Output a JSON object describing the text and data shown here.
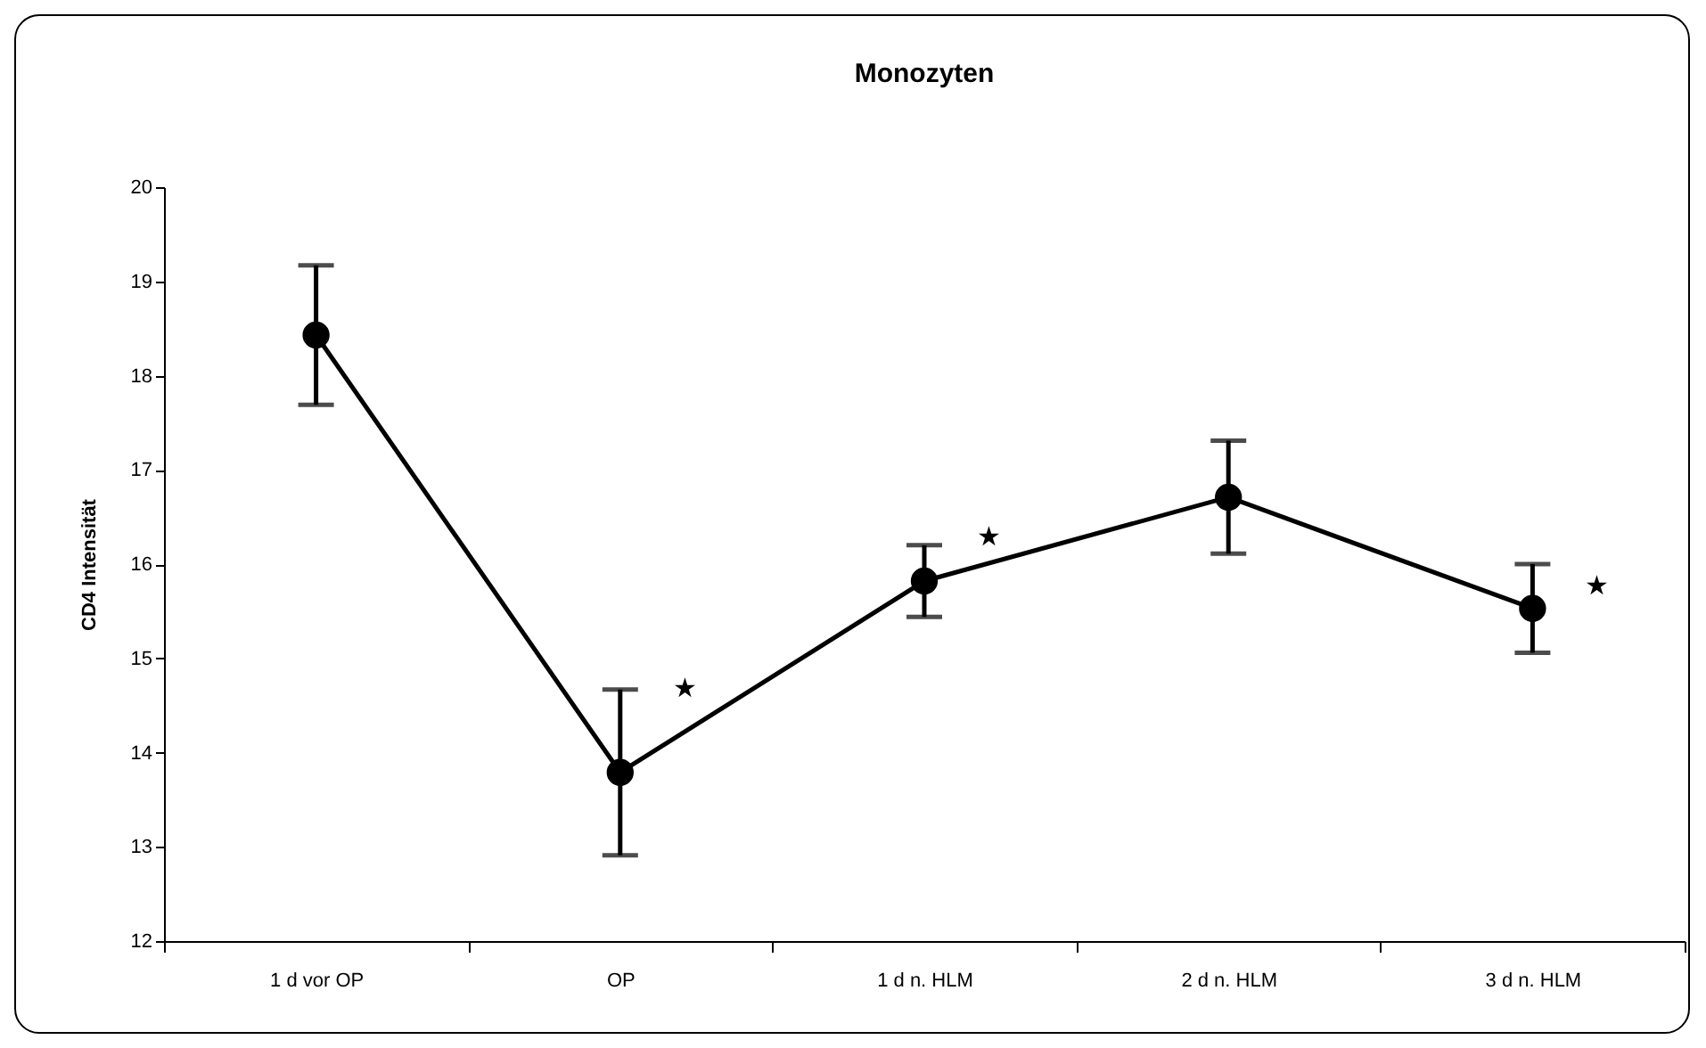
{
  "chart_data": {
    "type": "line",
    "title": "Monozyten",
    "ylabel": "CD4 Intensität",
    "categories": [
      "1 d vor OP",
      "OP",
      "1 d n. HLM",
      "2 d n. HLM",
      "3 d n. HLM"
    ],
    "series": [
      {
        "color": "#000000",
        "values": [
          18.43,
          13.79,
          15.82,
          16.71,
          15.53
        ],
        "errors": [
          0.74,
          0.88,
          0.38,
          0.6,
          0.47
        ]
      }
    ],
    "ylim": [
      12,
      20
    ],
    "yticks": [
      12,
      13,
      14,
      15,
      16,
      17,
      18,
      19,
      20
    ],
    "marker": "circle",
    "line_style": "solid",
    "annotations": [
      {
        "text": "★",
        "x": "OP",
        "y": 14.59
      },
      {
        "text": "★",
        "x": "1 d n. HLM",
        "y": 16.2
      },
      {
        "text": "★",
        "x": "3 d n. HLM",
        "y": 15.68
      }
    ]
  }
}
